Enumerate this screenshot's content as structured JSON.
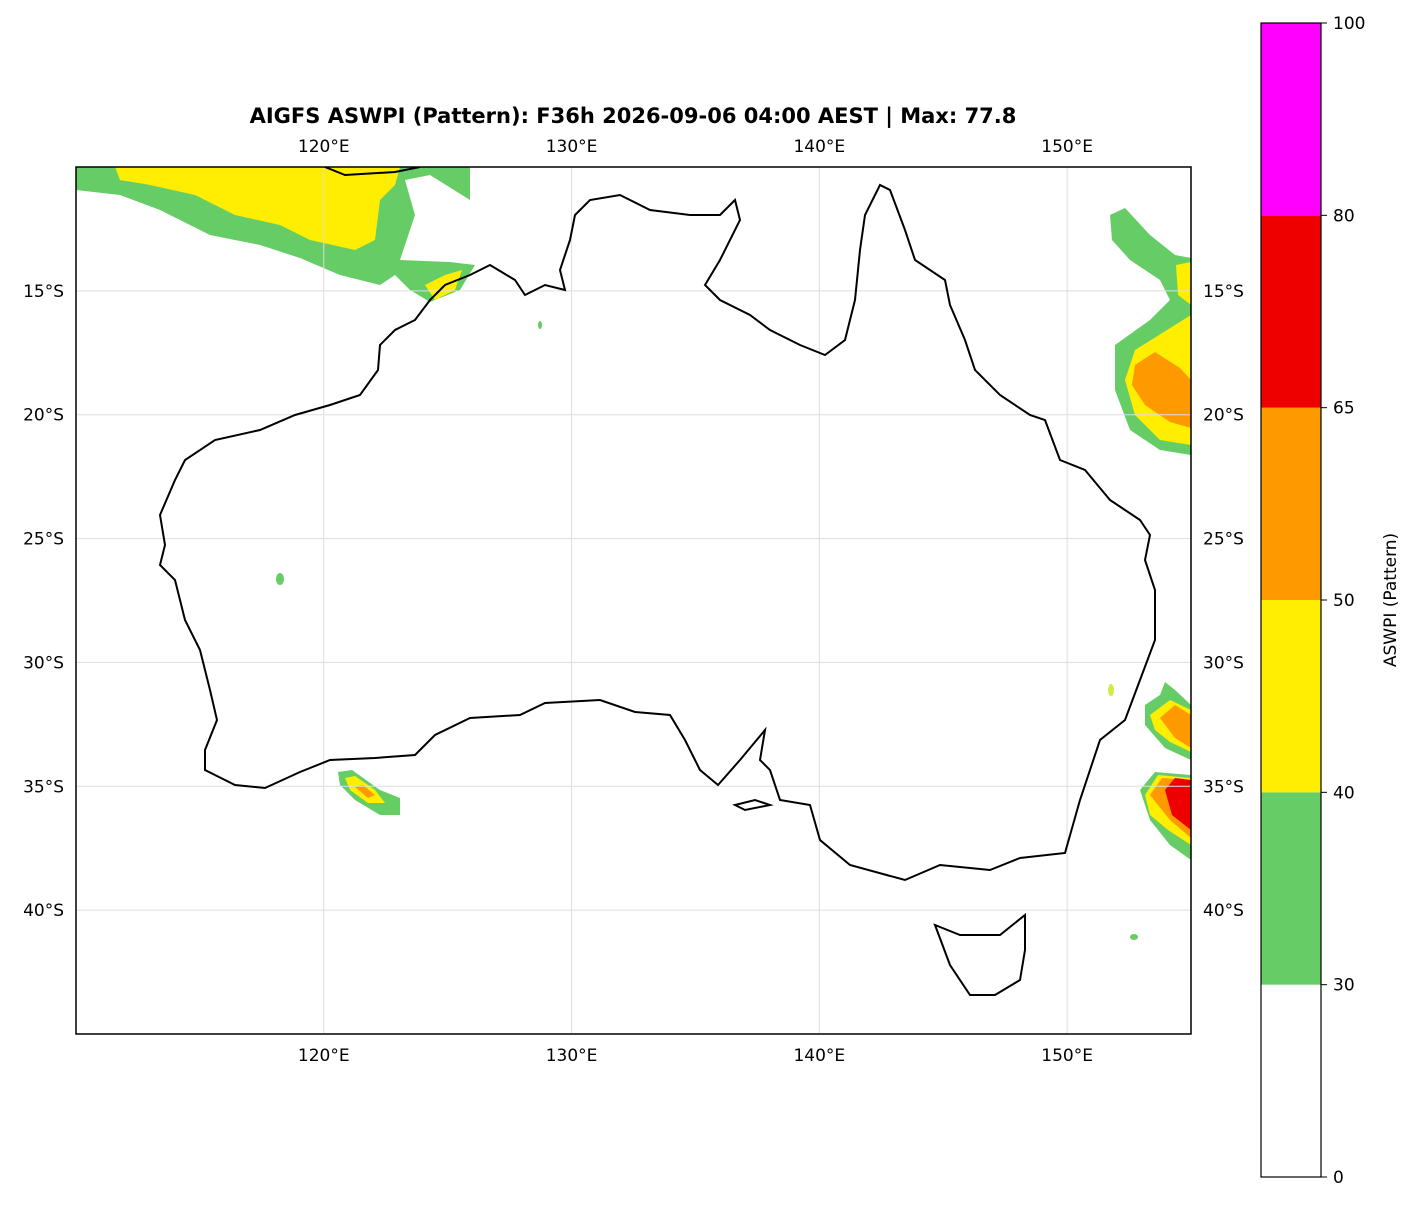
{
  "chart_data": {
    "type": "map",
    "title": "AIGFS ASWPI (Pattern): F36h 2026-09-06 04:00 AEST | Max: 77.8",
    "xlim": [
      110,
      155
    ],
    "ylim": [
      -45,
      -10
    ],
    "xticks": [
      {
        "value": 120,
        "label": "120°E"
      },
      {
        "value": 130,
        "label": "130°E"
      },
      {
        "value": 140,
        "label": "140°E"
      },
      {
        "value": 150,
        "label": "150°E"
      }
    ],
    "yticks": [
      {
        "value": -15,
        "label": "15°S"
      },
      {
        "value": -20,
        "label": "20°S"
      },
      {
        "value": -25,
        "label": "25°S"
      },
      {
        "value": -30,
        "label": "30°S"
      },
      {
        "value": -35,
        "label": "35°S"
      },
      {
        "value": -40,
        "label": "40°S"
      }
    ],
    "grid": true,
    "colorbar": {
      "label": "ASWPI (Pattern)",
      "levels": [
        0,
        30,
        40,
        50,
        65,
        80,
        100
      ],
      "colors": [
        "#ffffff",
        "#66cc66",
        "#ffee00",
        "#ff9900",
        "#ee0000",
        "#ff00ff"
      ]
    }
  }
}
